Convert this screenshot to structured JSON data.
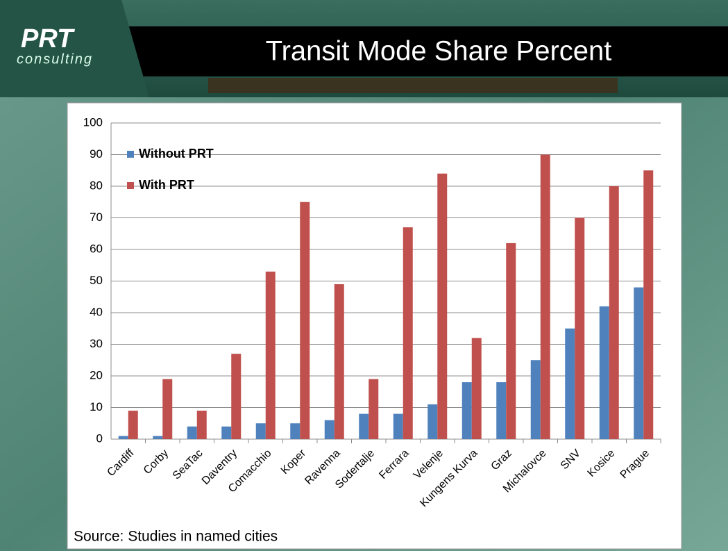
{
  "header": {
    "logo": "PRT",
    "logo_sub": "consulting",
    "title": "Transit Mode Share Percent"
  },
  "chart_data": {
    "type": "bar",
    "categories": [
      "Cardiff",
      "Corby",
      "SeaTac",
      "Daventry",
      "Comacchio",
      "Koper",
      "Ravenna",
      "Sodertalje",
      "Ferrara",
      "Velenje",
      "Kungens Kurva",
      "Graz",
      "Michalovce",
      "SNV",
      "Kosice",
      "Prague"
    ],
    "series": [
      {
        "name": "Without PRT",
        "color": "#4f81bd",
        "values": [
          1,
          1,
          4,
          4,
          5,
          5,
          6,
          8,
          8,
          11,
          18,
          18,
          25,
          35,
          42,
          48
        ]
      },
      {
        "name": "With PRT",
        "color": "#c0504d",
        "values": [
          9,
          19,
          9,
          27,
          53,
          75,
          49,
          19,
          67,
          84,
          32,
          62,
          90,
          70,
          80,
          85
        ]
      }
    ],
    "ylim": [
      0,
      100
    ],
    "yticks": [
      0,
      10,
      20,
      30,
      40,
      50,
      60,
      70,
      80,
      90,
      100
    ],
    "grid": true,
    "legend": "top-left",
    "source": "Source: Studies in named cities"
  }
}
